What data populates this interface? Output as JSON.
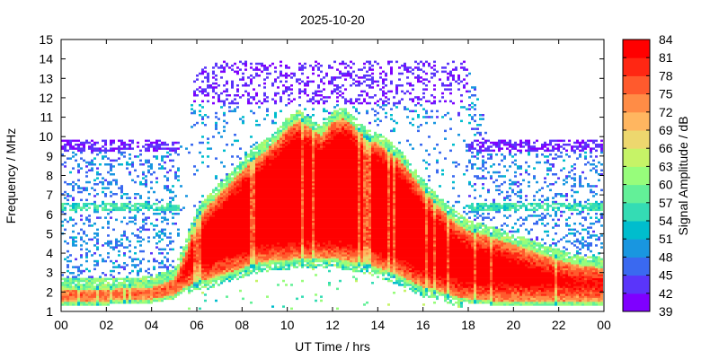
{
  "chart_data": {
    "type": "heatmap",
    "title": "2025-10-20",
    "xlabel": "UT Time / hrs",
    "ylabel": "Frequency / MHz",
    "colorbar_label": "Signal Amplitude / dB",
    "xlim": [
      0,
      24
    ],
    "ylim": [
      1,
      15
    ],
    "x_ticks": [
      "00",
      "02",
      "04",
      "06",
      "08",
      "10",
      "12",
      "14",
      "16",
      "18",
      "20",
      "22",
      "00"
    ],
    "x_tick_values": [
      0,
      2,
      4,
      6,
      8,
      10,
      12,
      14,
      16,
      18,
      20,
      22,
      24
    ],
    "y_ticks": [
      "1",
      "2",
      "3",
      "4",
      "5",
      "6",
      "7",
      "8",
      "9",
      "10",
      "11",
      "12",
      "13",
      "14",
      "15"
    ],
    "y_tick_values": [
      1,
      2,
      3,
      4,
      5,
      6,
      7,
      8,
      9,
      10,
      11,
      12,
      13,
      14,
      15
    ],
    "colorbar_range": [
      39,
      84
    ],
    "colorbar_ticks": [
      "84",
      "81",
      "78",
      "75",
      "72",
      "69",
      "66",
      "63",
      "60",
      "57",
      "54",
      "51",
      "48",
      "45",
      "42",
      "39"
    ],
    "colorbar_tick_values": [
      84,
      81,
      78,
      75,
      72,
      69,
      66,
      63,
      60,
      57,
      54,
      51,
      48,
      45,
      42,
      39
    ],
    "colormap": [
      "#7f00ff",
      "#5a35fa",
      "#3a69f0",
      "#1996e0",
      "#00bdcd",
      "#34dcb4",
      "#63f098",
      "#97fd7b",
      "#c6f367",
      "#edd76e",
      "#ffb660",
      "#ff8c46",
      "#ff5a2d",
      "#ff2713",
      "#ff0000"
    ],
    "grid": false,
    "legend": "colorbar-right",
    "trace_profile": {
      "description_hours": [
        0,
        2,
        4,
        5,
        5.5,
        6,
        6.5,
        7,
        7.5,
        8,
        8.5,
        9,
        9.5,
        10,
        10.5,
        11,
        11.5,
        12,
        12.5,
        13,
        13.5,
        14,
        14.5,
        15,
        15.5,
        16,
        16.5,
        17,
        17.5,
        18,
        19,
        20,
        21,
        22,
        23,
        24
      ],
      "strong_top_mhz": [
        2.3,
        2.3,
        2.4,
        2.8,
        4.2,
        5.9,
        6.6,
        7.2,
        7.8,
        8.4,
        9.0,
        9.4,
        9.9,
        10.6,
        11.0,
        10.6,
        10.2,
        10.9,
        11.1,
        10.6,
        10.0,
        9.8,
        9.4,
        8.9,
        8.2,
        7.4,
        6.8,
        6.2,
        5.7,
        5.3,
        5.0,
        4.6,
        4.2,
        3.8,
        3.5,
        3.4
      ],
      "strong_bottom_mhz": [
        1.3,
        1.3,
        1.4,
        1.6,
        2.0,
        2.3,
        2.4,
        2.6,
        2.8,
        3.0,
        3.2,
        3.3,
        3.4,
        3.4,
        3.5,
        3.5,
        3.5,
        3.5,
        3.4,
        3.3,
        3.2,
        3.0,
        2.8,
        2.6,
        2.3,
        2.0,
        1.9,
        1.7,
        1.5,
        1.4,
        1.3,
        1.3,
        1.3,
        1.3,
        1.3,
        1.3
      ],
      "scatter_band_top_mhz": [
        9.8,
        9.8,
        9.8,
        9.7,
        9.6,
        13.9,
        13.9,
        13.9,
        13.9,
        13.9,
        13.9,
        13.9,
        13.9,
        13.9,
        13.9,
        13.9,
        13.9,
        13.9,
        13.9,
        13.9,
        13.9,
        13.9,
        13.9,
        13.9,
        13.9,
        13.9,
        13.9,
        13.9,
        13.9,
        13.9,
        9.8,
        9.8,
        9.8,
        9.8,
        9.8,
        9.8
      ]
    }
  }
}
